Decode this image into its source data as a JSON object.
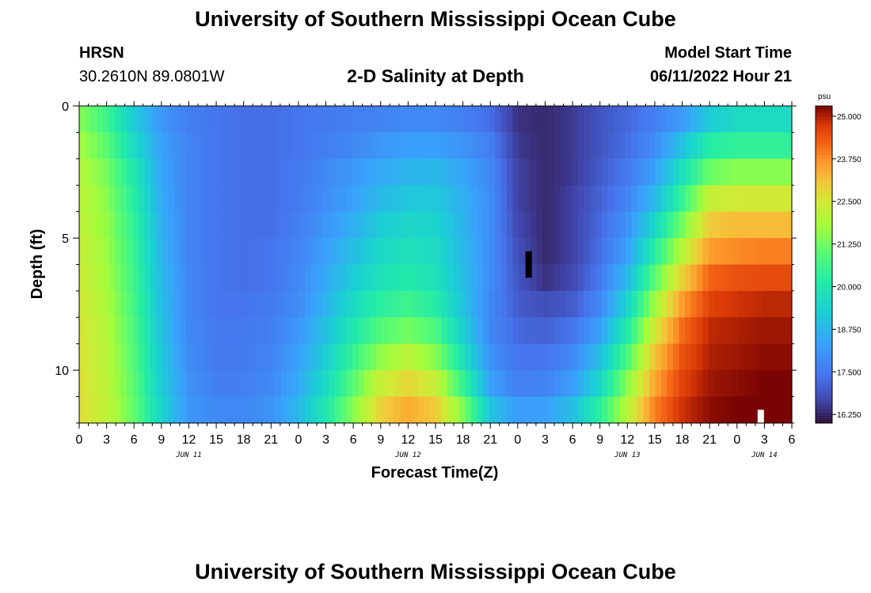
{
  "page": {
    "title_top": "University of Southern Mississippi Ocean Cube",
    "title_bottom": "University of Southern Mississippi Ocean Cube"
  },
  "header": {
    "station": "HRSN",
    "coords": "30.2610N  89.0801W",
    "plot_title": "2-D Salinity at Depth",
    "model_label": "Model Start Time",
    "model_time": "06/11/2022 Hour 21"
  },
  "colors": {
    "background": "#ffffff",
    "low": "#3b2a6e",
    "high": "#7a0a03"
  },
  "chart_data": {
    "type": "heatmap",
    "title": "2-D Salinity at Depth",
    "xlabel": "Forecast Time(Z)",
    "ylabel": "Depth (ft)",
    "x_tick_labels": [
      "0",
      "3",
      "6",
      "9",
      "12",
      "15",
      "18",
      "21",
      "0",
      "3",
      "6",
      "9",
      "12",
      "15",
      "18",
      "21",
      "0",
      "3",
      "6",
      "9",
      "12",
      "15",
      "18",
      "21",
      "0",
      "3",
      "6"
    ],
    "x_range_hours": [
      0,
      78
    ],
    "date_labels": [
      {
        "label": "JUN 11",
        "hour": 12
      },
      {
        "label": "JUN 12",
        "hour": 36
      },
      {
        "label": "JUN 13",
        "hour": 60
      },
      {
        "label": "JUN 14",
        "hour": 75
      }
    ],
    "y_tick_labels": [
      "0",
      "5",
      "10"
    ],
    "y_range_ft": [
      0,
      12
    ],
    "colorbar": {
      "unit": "psu",
      "min": 16.0,
      "max": 25.3,
      "tick_labels": [
        "25.000",
        "23.750",
        "22.500",
        "21.250",
        "20.000",
        "18.750",
        "17.500",
        "16.250"
      ]
    },
    "depth_rows_ft": [
      0,
      1,
      2,
      3,
      4,
      5,
      6,
      7,
      8,
      9,
      10,
      11
    ],
    "time_keys_hours": [
      0,
      3,
      6,
      9,
      12,
      15,
      18,
      21,
      24,
      27,
      30,
      33,
      36,
      39,
      42,
      45,
      48,
      51,
      54,
      57,
      60,
      63,
      66,
      69,
      72,
      75,
      78
    ],
    "salinity_psu": [
      [
        21.5,
        20.6,
        19.2,
        18.1,
        17.6,
        17.4,
        17.3,
        17.3,
        17.4,
        17.5,
        17.6,
        17.7,
        17.8,
        17.8,
        17.6,
        17.3,
        16.4,
        16.3,
        16.5,
        16.9,
        17.2,
        17.6,
        18.2,
        19.2,
        19.6,
        19.6,
        19.6
      ],
      [
        21.8,
        21.0,
        19.6,
        18.3,
        17.7,
        17.4,
        17.3,
        17.3,
        17.4,
        17.6,
        17.8,
        18.1,
        18.3,
        18.3,
        18.0,
        17.6,
        16.5,
        16.3,
        16.5,
        16.9,
        17.3,
        17.9,
        19.0,
        20.2,
        20.4,
        20.4,
        20.4
      ],
      [
        22.0,
        21.3,
        20.0,
        18.4,
        17.7,
        17.4,
        17.3,
        17.3,
        17.5,
        17.8,
        18.1,
        18.5,
        18.7,
        18.8,
        18.4,
        17.8,
        16.6,
        16.3,
        16.5,
        17.0,
        17.5,
        18.3,
        19.8,
        21.2,
        21.5,
        21.5,
        21.5
      ],
      [
        22.1,
        21.5,
        20.2,
        18.5,
        17.7,
        17.4,
        17.3,
        17.3,
        17.5,
        17.9,
        18.3,
        18.8,
        19.1,
        19.1,
        18.6,
        17.9,
        16.6,
        16.3,
        16.6,
        17.1,
        17.7,
        18.8,
        20.5,
        22.3,
        22.5,
        22.5,
        22.5
      ],
      [
        22.2,
        21.6,
        20.4,
        18.6,
        17.7,
        17.4,
        17.3,
        17.3,
        17.6,
        18.1,
        18.6,
        19.2,
        19.5,
        19.4,
        18.7,
        17.9,
        16.7,
        16.3,
        16.6,
        17.2,
        18.0,
        19.5,
        21.3,
        23.0,
        23.2,
        23.2,
        23.2
      ],
      [
        22.3,
        21.7,
        20.5,
        18.7,
        17.7,
        17.4,
        17.3,
        17.4,
        17.7,
        18.3,
        18.9,
        19.5,
        19.8,
        19.6,
        18.8,
        17.9,
        16.8,
        16.3,
        16.6,
        17.3,
        18.3,
        20.2,
        22.1,
        23.6,
        23.8,
        23.9,
        23.9
      ],
      [
        22.4,
        21.8,
        20.6,
        18.8,
        17.8,
        17.4,
        17.3,
        17.4,
        17.8,
        18.5,
        19.2,
        19.8,
        20.1,
        19.8,
        18.9,
        17.9,
        16.9,
        16.4,
        16.7,
        17.5,
        18.8,
        21.0,
        22.9,
        24.2,
        24.4,
        24.5,
        24.5
      ],
      [
        22.5,
        21.9,
        20.7,
        18.9,
        17.8,
        17.4,
        17.4,
        17.5,
        17.9,
        18.7,
        19.6,
        20.3,
        20.6,
        20.2,
        19.0,
        17.8,
        17.0,
        16.8,
        17.0,
        17.8,
        19.4,
        21.8,
        23.6,
        24.6,
        24.8,
        24.9,
        24.9
      ],
      [
        22.6,
        22.0,
        20.8,
        19.0,
        17.8,
        17.5,
        17.5,
        17.6,
        18.1,
        19.0,
        20.0,
        20.9,
        21.3,
        20.8,
        19.3,
        17.8,
        17.2,
        17.1,
        17.4,
        18.3,
        20.1,
        22.5,
        24.1,
        24.9,
        25.0,
        25.1,
        25.1
      ],
      [
        22.6,
        22.1,
        20.9,
        19.1,
        17.9,
        17.5,
        17.5,
        17.7,
        18.3,
        19.3,
        20.5,
        21.6,
        22.1,
        21.5,
        19.8,
        18.0,
        17.4,
        17.4,
        17.8,
        18.9,
        20.8,
        23.1,
        24.4,
        25.0,
        25.1,
        25.2,
        25.2
      ],
      [
        22.7,
        22.1,
        21.0,
        19.2,
        18.0,
        17.6,
        17.6,
        17.8,
        18.5,
        19.6,
        21.0,
        22.3,
        22.8,
        22.3,
        20.5,
        18.3,
        17.6,
        17.7,
        18.2,
        19.5,
        21.5,
        23.5,
        24.6,
        25.1,
        25.2,
        25.3,
        25.3
      ],
      [
        22.7,
        22.2,
        21.1,
        19.4,
        18.1,
        17.8,
        17.8,
        18.0,
        18.8,
        20.0,
        21.5,
        22.9,
        23.4,
        23.0,
        21.4,
        19.0,
        18.2,
        18.3,
        18.9,
        20.3,
        22.1,
        23.9,
        24.8,
        25.2,
        25.3,
        25.3,
        25.3
      ]
    ],
    "annotations": [
      {
        "type": "black-marker",
        "hour": 49.2,
        "depth_from_ft": 5.5,
        "depth_to_ft": 6.5
      },
      {
        "type": "white-marker",
        "hour": 74.6,
        "depth_from_ft": 11.5,
        "depth_to_ft": 12
      }
    ]
  }
}
